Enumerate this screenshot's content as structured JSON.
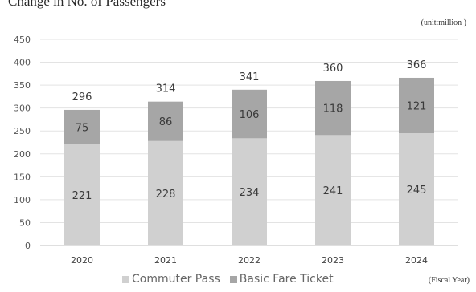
{
  "header": {
    "title": "Change in No. of Passengers",
    "unit": "(unit:million )"
  },
  "footer": {
    "fiscal_label": "(Fiscal Year)"
  },
  "legend": {
    "items": [
      {
        "label": "Commuter Pass",
        "color": "#d0d0d0"
      },
      {
        "label": "Basic Fare Ticket",
        "color": "#a6a6a6"
      }
    ]
  },
  "chart_data": {
    "type": "bar",
    "stacked": true,
    "categories": [
      "2020",
      "2021",
      "2022",
      "2023",
      "2024"
    ],
    "series": [
      {
        "name": "Commuter Pass",
        "values": [
          221,
          228,
          234,
          241,
          245
        ],
        "color": "#d0d0d0"
      },
      {
        "name": "Basic Fare Ticket",
        "values": [
          75,
          86,
          106,
          118,
          121
        ],
        "color": "#a6a6a6"
      }
    ],
    "totals": [
      296,
      314,
      341,
      360,
      366
    ],
    "ylim": [
      0,
      450
    ],
    "yticks": [
      0,
      50,
      100,
      150,
      200,
      250,
      300,
      350,
      400,
      450
    ],
    "grid": true,
    "legend_position": "bottom",
    "xlabel": "",
    "ylabel": ""
  }
}
